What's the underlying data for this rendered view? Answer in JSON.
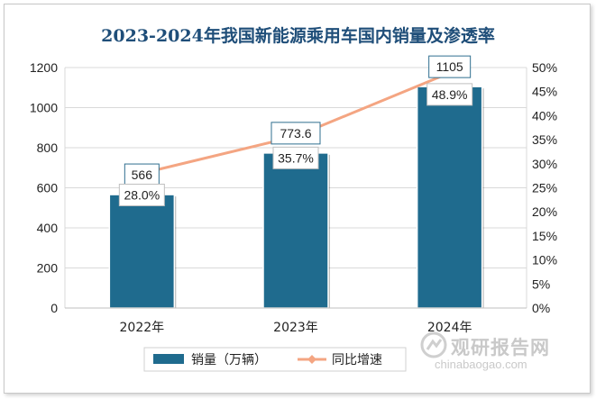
{
  "chart_data": {
    "type": "bar",
    "title": "2023-2024年我国新能源乘用车国内销量及渗透率",
    "categories": [
      "2022年",
      "2023年",
      "2024年"
    ],
    "series": [
      {
        "name": "销量（万辆）",
        "type": "bar",
        "axis": "left",
        "values": [
          566,
          773.6,
          1105
        ],
        "color": "#1f6b8e"
      },
      {
        "name": "同比增速",
        "type": "line",
        "axis": "right",
        "values": [
          28.0,
          35.7,
          48.9
        ],
        "unit": "%",
        "color": "#f4a582"
      }
    ],
    "bar_labels": [
      "566",
      "773.6",
      "1105"
    ],
    "line_labels": [
      "28.0%",
      "35.7%",
      "48.9%"
    ],
    "y_left": {
      "ylim": [
        0,
        1200
      ],
      "ticks": [
        0,
        200,
        400,
        600,
        800,
        1000,
        1200
      ]
    },
    "y_right": {
      "ylim": [
        0,
        50
      ],
      "ticks": [
        "0%",
        "5%",
        "10%",
        "15%",
        "20%",
        "25%",
        "30%",
        "35%",
        "40%",
        "45%",
        "50%"
      ]
    },
    "grid": true,
    "legend_position": "bottom"
  },
  "watermark": {
    "name": "观研报告网",
    "url": "chinabaogao.com"
  }
}
